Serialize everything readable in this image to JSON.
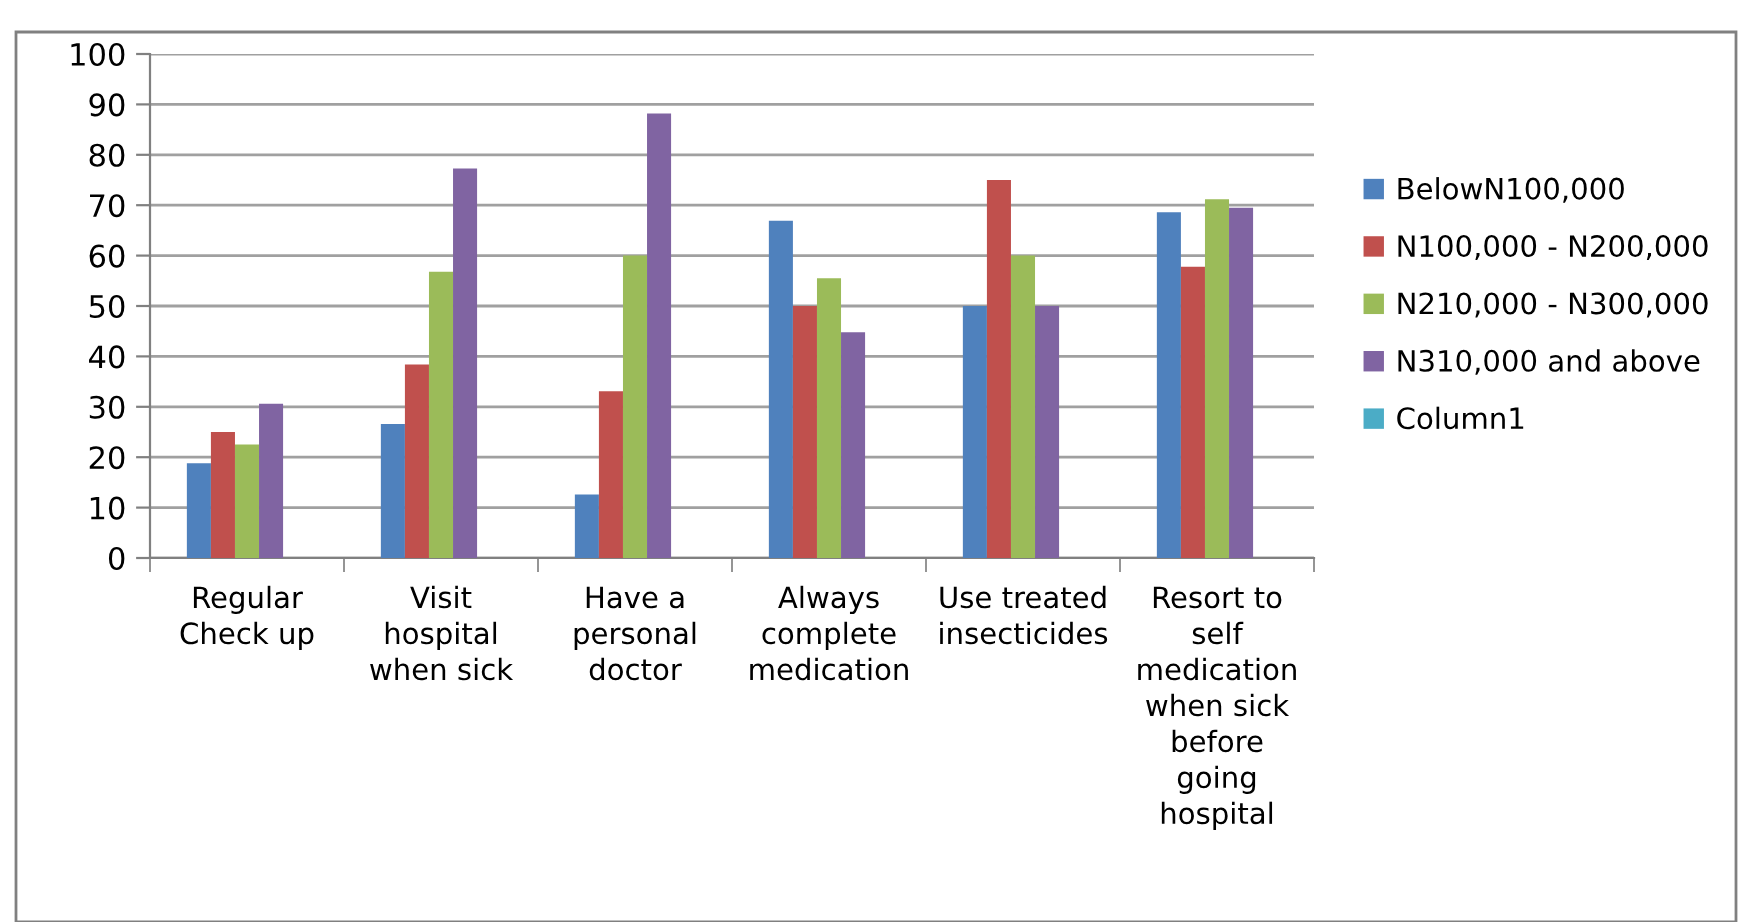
{
  "chart_data": {
    "type": "bar",
    "categories": [
      "Regular\nCheck up",
      "Visit\nhospital\nwhen sick",
      "Have a\npersonal\ndoctor",
      "Always\ncomplete\nmedication",
      "Use treated\ninsecticides",
      "Resort to\nself\nmedication\nwhen sick\nbefore\ngoing\nhospital"
    ],
    "series": [
      {
        "name": "BelowN100,000",
        "color": "#4f81bd",
        "values": [
          18.8,
          26.6,
          12.6,
          66.9,
          50,
          68.6
        ]
      },
      {
        "name": "N100,000 - N200,000",
        "color": "#c0504d",
        "values": [
          25,
          38.4,
          33.1,
          50,
          75,
          57.8
        ]
      },
      {
        "name": "N210,000 - N300,000",
        "color": "#9bbb59",
        "values": [
          22.5,
          56.8,
          60,
          55.5,
          60,
          71.2
        ]
      },
      {
        "name": "N310,000 and above",
        "color": "#8064a2",
        "values": [
          30.6,
          77.3,
          88.2,
          44.8,
          50,
          69.5
        ]
      },
      {
        "name": "Column1",
        "color": "#4bacc6",
        "values": [
          null,
          null,
          null,
          null,
          null,
          null
        ]
      }
    ],
    "ylim": [
      0,
      100
    ],
    "yticks": [
      0,
      10,
      20,
      30,
      40,
      50,
      60,
      70,
      80,
      90,
      100
    ],
    "grid": "y",
    "legend": "right"
  }
}
